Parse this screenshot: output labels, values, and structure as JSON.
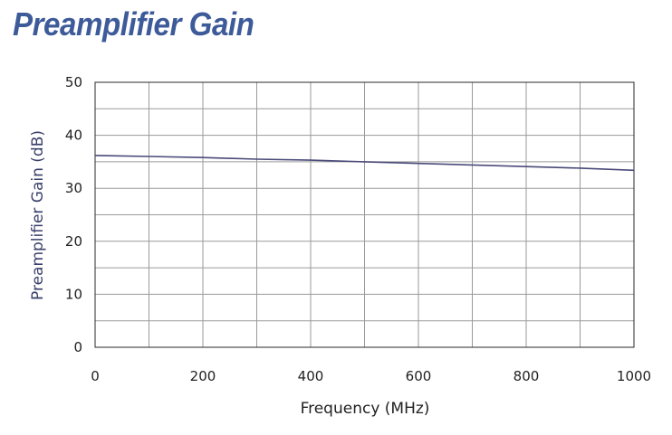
{
  "page": {
    "title": "Preamplifier Gain"
  },
  "chart_data": {
    "type": "line",
    "title": "Preamplifier Gain",
    "xlabel": "Frequency (MHz)",
    "ylabel": "Preamplifier Gain (dB)",
    "xlim": [
      0,
      1000
    ],
    "ylim": [
      0,
      50
    ],
    "xticks": [
      0,
      200,
      400,
      600,
      800,
      1000
    ],
    "yticks": [
      0,
      10,
      20,
      30,
      40,
      50
    ],
    "grid": true,
    "line_color": "#4a4a7a",
    "series": [
      {
        "x": [
          0,
          100,
          200,
          300,
          400,
          500,
          600,
          700,
          800,
          900,
          1000
        ],
        "y": [
          36.2,
          36.0,
          35.8,
          35.5,
          35.3,
          35.0,
          34.7,
          34.4,
          34.1,
          33.8,
          33.4
        ]
      }
    ]
  }
}
